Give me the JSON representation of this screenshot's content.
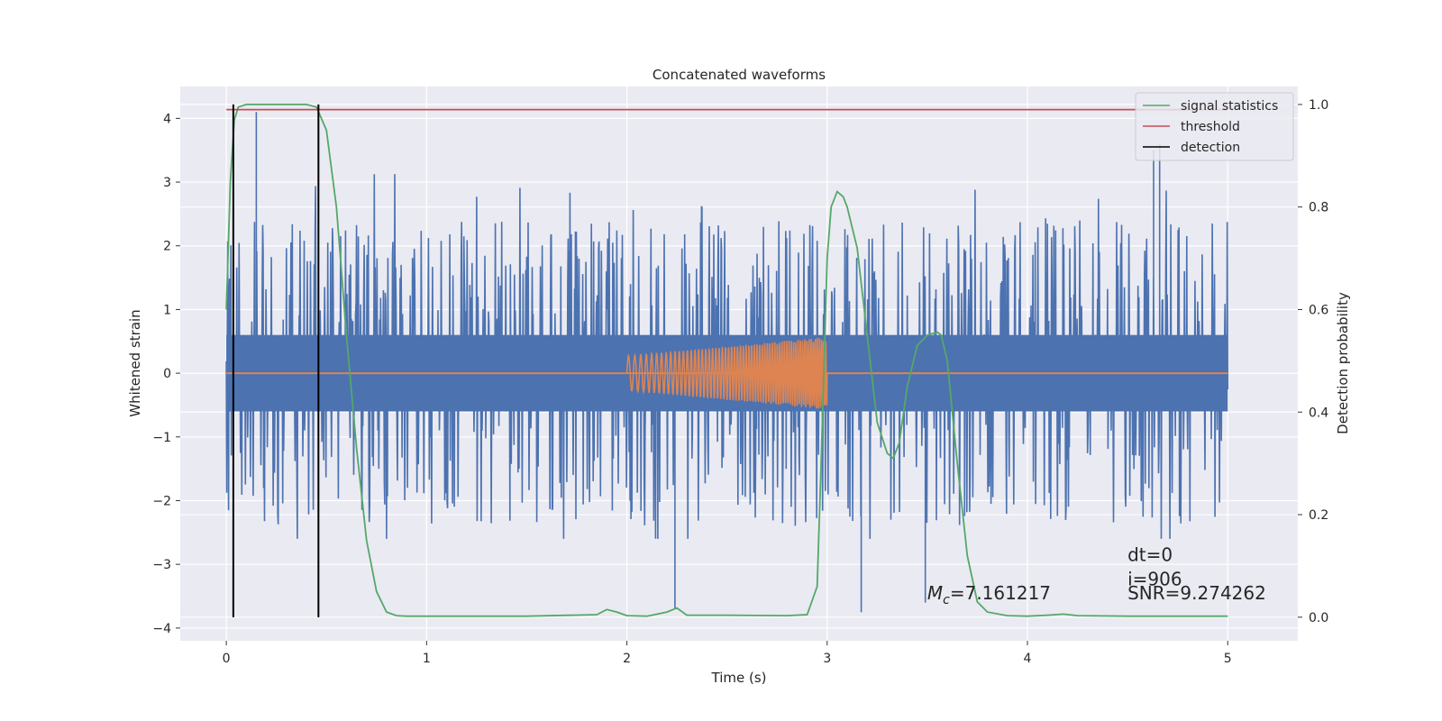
{
  "chart_data": {
    "type": "line",
    "title": "Concatenated waveforms",
    "xlabel": "Time (s)",
    "ylabel": "Whitened strain",
    "ylabel_right": "Detection probability",
    "xlim": [
      -0.23,
      5.35
    ],
    "ylim": [
      -4.2,
      4.5
    ],
    "ylim_right": [
      -0.046,
      1.035
    ],
    "xticks": [
      0,
      1,
      2,
      3,
      4,
      5
    ],
    "yticks": [
      -4,
      -3,
      -2,
      -1,
      0,
      1,
      2,
      3,
      4
    ],
    "yticks_right": [
      0.0,
      0.2,
      0.4,
      0.6,
      0.8,
      1.0
    ],
    "grid": true,
    "legend_position": "upper right",
    "colors": {
      "noise": "#4c72b0",
      "template": "#dd8452",
      "signal_statistics": "#55a868",
      "threshold": "#c44e52",
      "detection": "#000000",
      "background": "#eaeaf2",
      "grid": "#ffffff"
    },
    "noise": {
      "x_range": [
        0,
        5
      ],
      "band": [
        -0.6,
        0.6
      ],
      "peak_envelope": [
        -2.6,
        4.1
      ],
      "spikes": [
        {
          "x": 0.15,
          "y": 4.1
        },
        {
          "x": 4.63,
          "y": 3.5
        },
        {
          "x": 4.66,
          "y": 3.6
        },
        {
          "x": 3.17,
          "y": -3.75
        },
        {
          "x": 2.24,
          "y": -3.7
        },
        {
          "x": 3.49,
          "y": -3.6
        }
      ]
    },
    "template": {
      "baseline": 0,
      "chirp_range": [
        2.0,
        3.0
      ],
      "amplitude_start": 0.27,
      "amplitude_end": 0.57
    },
    "series": [
      {
        "name": "signal statistics",
        "axis": "right",
        "x": [
          0,
          0.02,
          0.04,
          0.06,
          0.1,
          0.2,
          0.3,
          0.4,
          0.45,
          0.5,
          0.55,
          0.6,
          0.65,
          0.7,
          0.75,
          0.8,
          0.85,
          0.9,
          1.0,
          1.5,
          1.85,
          1.9,
          1.95,
          2.0,
          2.1,
          2.2,
          2.25,
          2.3,
          2.5,
          2.8,
          2.9,
          2.95,
          2.97,
          3.0,
          3.02,
          3.05,
          3.08,
          3.1,
          3.15,
          3.2,
          3.25,
          3.3,
          3.33,
          3.36,
          3.4,
          3.45,
          3.5,
          3.55,
          3.57,
          3.6,
          3.65,
          3.7,
          3.75,
          3.8,
          3.9,
          4.0,
          4.1,
          4.18,
          4.25,
          4.5,
          5.0
        ],
        "values": [
          0.6,
          0.85,
          0.97,
          0.995,
          1.0,
          1.0,
          1.0,
          1.0,
          0.995,
          0.95,
          0.8,
          0.55,
          0.33,
          0.15,
          0.05,
          0.01,
          0.003,
          0.002,
          0.002,
          0.002,
          0.005,
          0.015,
          0.01,
          0.003,
          0.002,
          0.01,
          0.018,
          0.004,
          0.004,
          0.003,
          0.005,
          0.06,
          0.3,
          0.7,
          0.8,
          0.83,
          0.82,
          0.8,
          0.72,
          0.55,
          0.38,
          0.32,
          0.31,
          0.34,
          0.45,
          0.53,
          0.55,
          0.556,
          0.55,
          0.5,
          0.3,
          0.12,
          0.03,
          0.01,
          0.003,
          0.002,
          0.004,
          0.006,
          0.003,
          0.002,
          0.002
        ]
      },
      {
        "name": "threshold",
        "axis": "right",
        "x": [
          0,
          5
        ],
        "values": [
          0.99,
          0.99
        ]
      },
      {
        "name": "detection",
        "axis": "right",
        "type": "vlines",
        "x": [
          0.035,
          0.46
        ],
        "y_range": [
          0.0,
          1.0
        ]
      }
    ],
    "annotations": [
      {
        "x": 3.5,
        "y": -3.55,
        "math": "M",
        "sub": "c",
        "text": "=7.161217"
      },
      {
        "x": 4.5,
        "y": -2.95,
        "text": "dt=0"
      },
      {
        "x": 4.5,
        "y": -3.33,
        "text": "i=906"
      },
      {
        "x": 4.5,
        "y": -3.55,
        "text": "SNR=9.274262"
      }
    ]
  }
}
